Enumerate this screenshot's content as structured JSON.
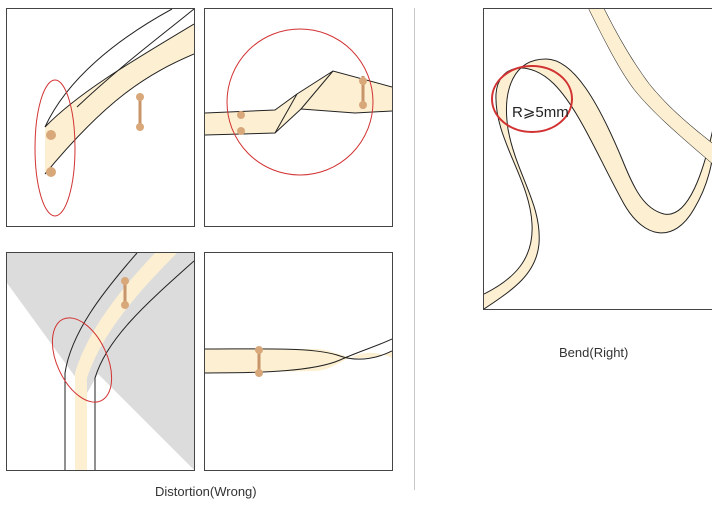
{
  "captions": {
    "wrong": "Distortion(Wrong)",
    "right": "Bend(Right)"
  },
  "bend_radius_label": "R⩾5mm",
  "colors": {
    "strip_fill": "#fdf0d2",
    "strip_outline": "#222222",
    "solder_pad": "#d9a87a",
    "highlight_circle": "#d23232",
    "shade": "#dcdcdc"
  },
  "panels": [
    {
      "id": "distortion-1",
      "status": "wrong"
    },
    {
      "id": "distortion-2",
      "status": "wrong"
    },
    {
      "id": "distortion-3",
      "status": "wrong"
    },
    {
      "id": "distortion-4",
      "status": "wrong"
    },
    {
      "id": "bend-correct",
      "status": "right"
    }
  ]
}
